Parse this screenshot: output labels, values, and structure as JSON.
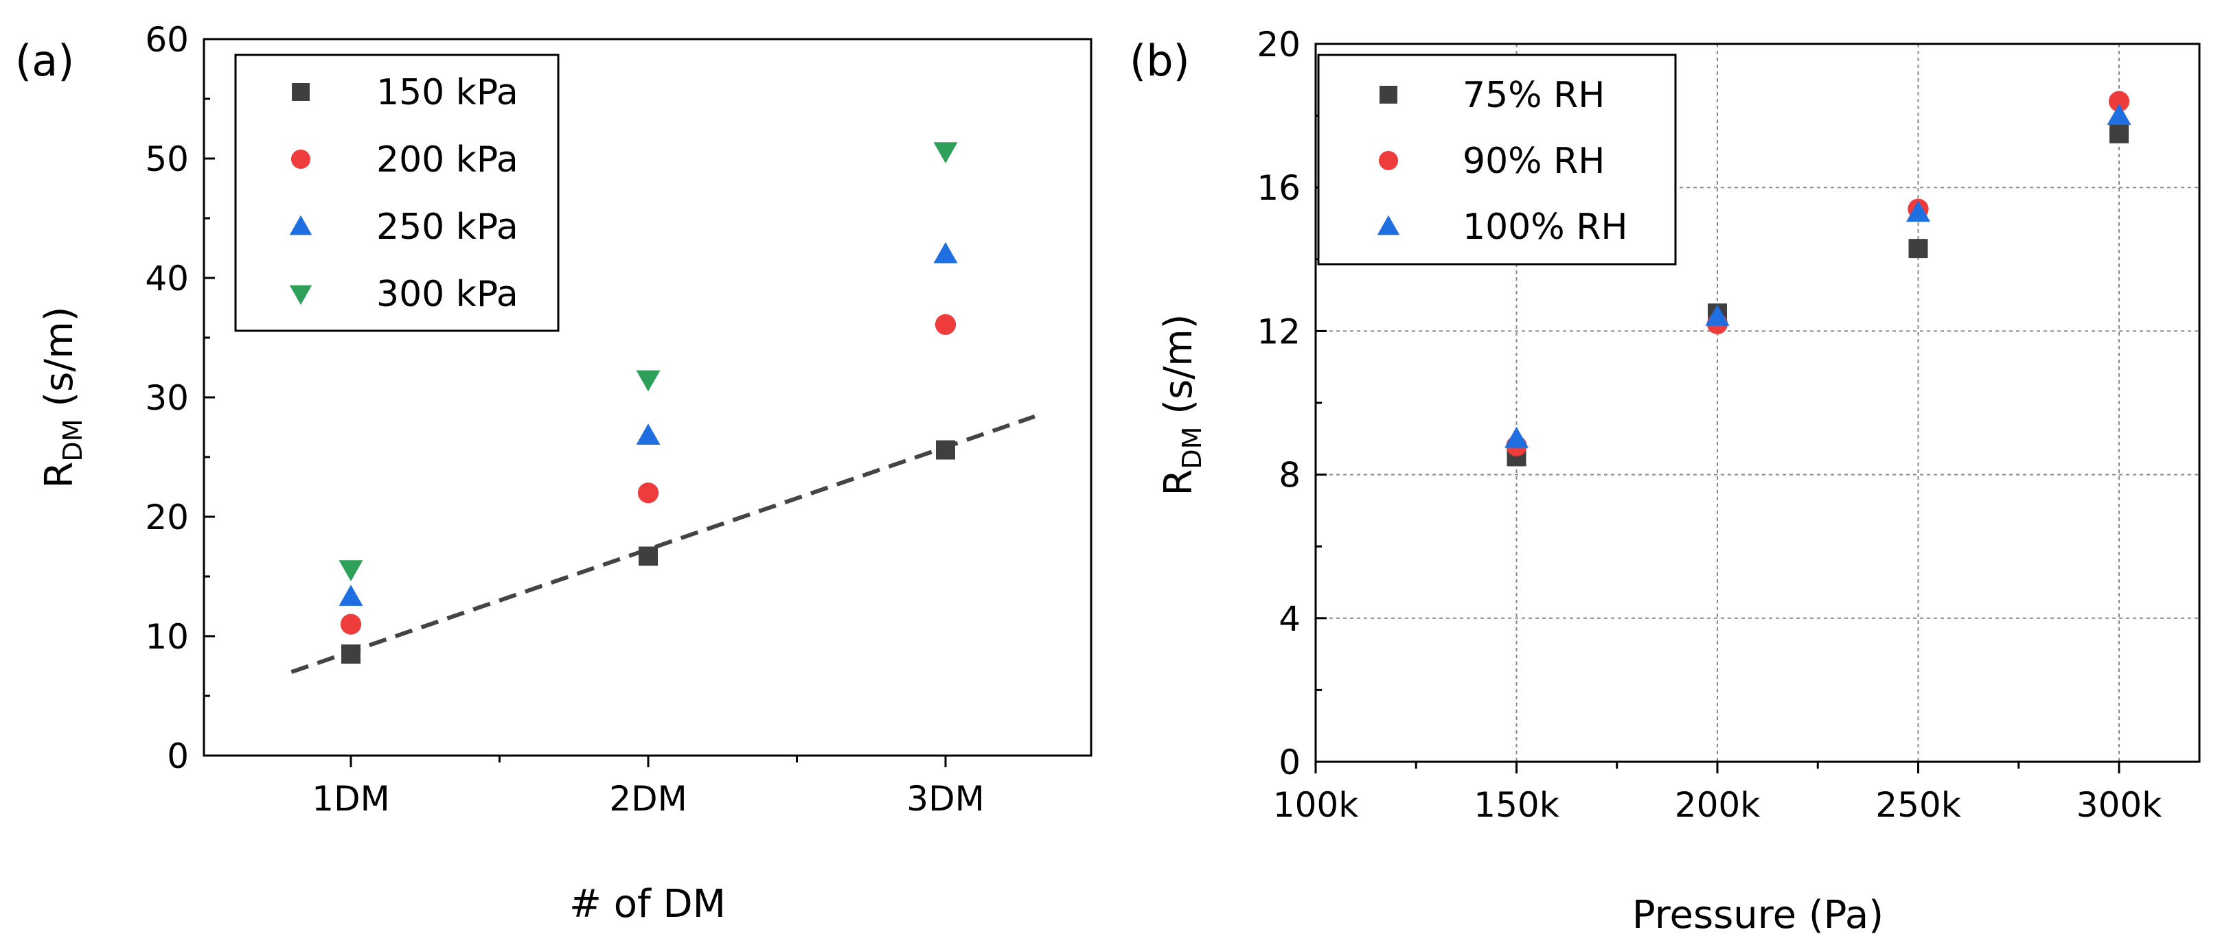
{
  "chart_data": [
    {
      "panel_label": "(a)",
      "type": "scatter",
      "categories": [
        "1DM",
        "2DM",
        "3DM"
      ],
      "xlabel": "# of DM",
      "ylabel_main": "R",
      "ylabel_sub": "DM",
      "ylabel_unit": " (s/m)",
      "ylim": [
        0,
        60
      ],
      "yticks": [
        "0",
        "10",
        "20",
        "30",
        "40",
        "50",
        "60"
      ],
      "grid": false,
      "legend_position": "top-left",
      "series": [
        {
          "name": "150 kPa",
          "marker": "square",
          "color": "#3f3f3f",
          "values": [
            8.5,
            16.7,
            25.6
          ]
        },
        {
          "name": "200 kPa",
          "marker": "circle",
          "color": "#ee3b3b",
          "values": [
            11.0,
            22.0,
            36.1
          ]
        },
        {
          "name": "250 kPa",
          "marker": "triangle-up",
          "color": "#1f6fe0",
          "values": [
            13.3,
            26.8,
            42.0
          ]
        },
        {
          "name": "300 kPa",
          "marker": "triangle-down",
          "color": "#2ea05a",
          "values": [
            15.6,
            31.5,
            50.6
          ]
        }
      ],
      "fit_line": {
        "style": "dashed",
        "color": "#444444",
        "x": [
          0.8,
          3.3
        ],
        "y": [
          7.0,
          28.4
        ]
      }
    },
    {
      "panel_label": "(b)",
      "type": "scatter",
      "x": [
        150000,
        200000,
        250000,
        300000
      ],
      "xlim": [
        100000,
        320000
      ],
      "xticks": [
        100000,
        150000,
        200000,
        250000,
        300000
      ],
      "xtick_labels": [
        "100k",
        "150k",
        "200k",
        "250k",
        "300k"
      ],
      "xlabel": "Pressure (Pa)",
      "ylabel_main": "R",
      "ylabel_sub": "DM",
      "ylabel_unit": " (s/m)",
      "ylim": [
        0,
        20
      ],
      "yticks": [
        "0",
        "4",
        "8",
        "12",
        "16",
        "20"
      ],
      "grid": true,
      "legend_position": "top-left",
      "series": [
        {
          "name": "75% RH",
          "marker": "square",
          "color": "#3f3f3f",
          "values": [
            8.5,
            12.5,
            14.3,
            17.5
          ]
        },
        {
          "name": "90% RH",
          "marker": "circle",
          "color": "#ee3b3b",
          "values": [
            8.8,
            12.2,
            15.4,
            18.4
          ]
        },
        {
          "name": "100% RH",
          "marker": "triangle-up",
          "color": "#1f6fe0",
          "values": [
            9.0,
            12.4,
            15.3,
            18.0
          ]
        }
      ]
    }
  ]
}
